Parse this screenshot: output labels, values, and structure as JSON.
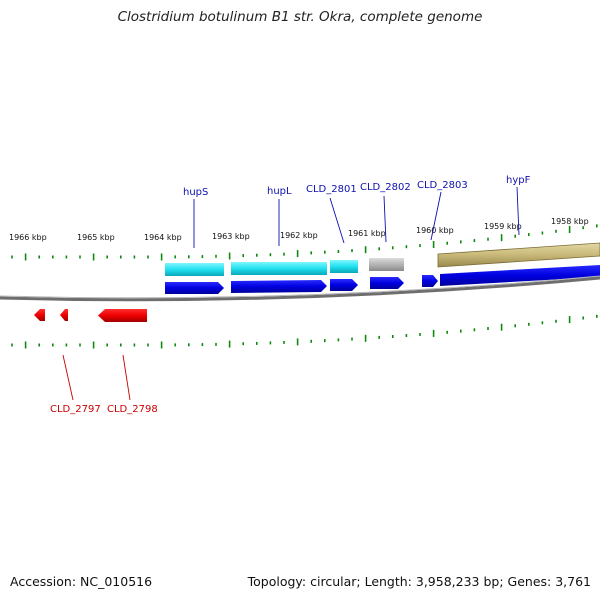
{
  "title": "Clostridium botulinum B1 str. Okra, complete genome",
  "footer": {
    "accession": "Accession: NC_010516",
    "topology": "Topology: circular; Length: 3,958,233 bp; Genes: 3,761"
  },
  "kbp_labels": [
    "1966 kbp",
    "1965 kbp",
    "1964 kbp",
    "1963 kbp",
    "1962 kbp",
    "1961 kbp",
    "1960 kbp",
    "1959 kbp",
    "1958 kbp"
  ],
  "gene_labels": {
    "hupS": "hupS",
    "hupL": "hupL",
    "cld2801": "CLD_2801",
    "cld2802": "CLD_2802",
    "cld2803": "CLD_2803",
    "hypF": "hypF",
    "cld2797": "CLD_2797",
    "cld2798": "CLD_2798"
  },
  "colors": {
    "forward_gene": "#0000e6",
    "reverse_gene": "#ee0000",
    "cds_cyan": "#22e0f0",
    "cds_gray": "#b4b4b4",
    "cds_olive": "#c8b878",
    "tick": "#0f8a0f",
    "backbone": "#6e6e6e",
    "label_forward": "#1010b0",
    "label_reverse": "#c80000"
  }
}
